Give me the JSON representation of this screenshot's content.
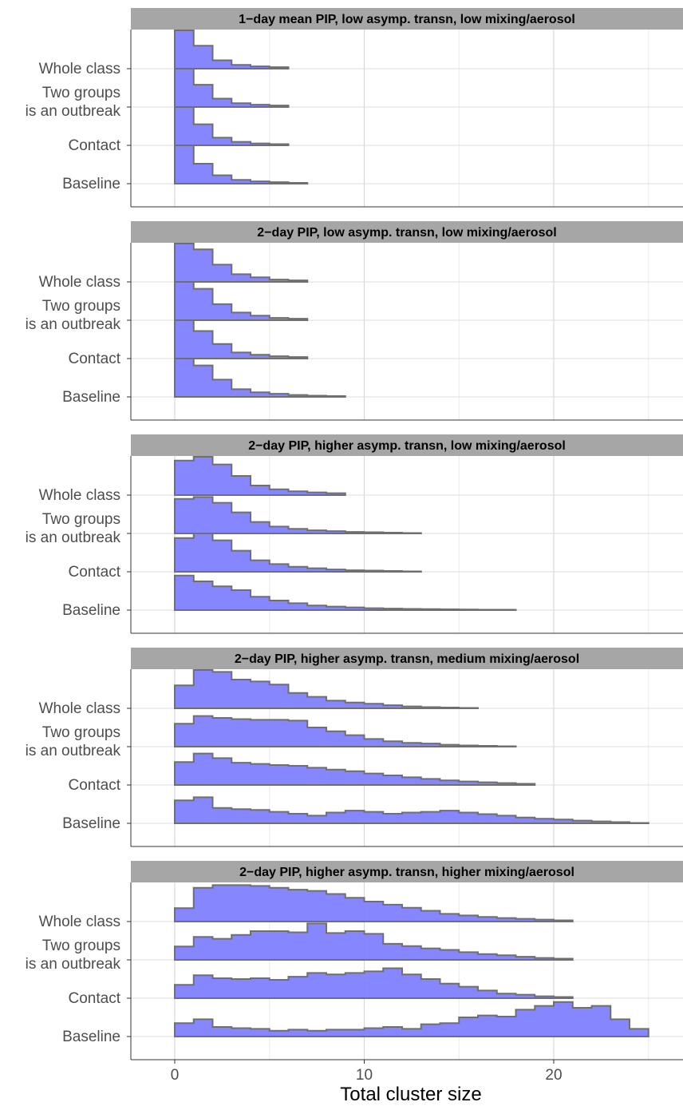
{
  "chart_data": {
    "type": "histogram-ridgeline",
    "xlabel": "Total cluster size",
    "x_ticks": [
      0,
      10,
      20
    ],
    "xlim": [
      -2.3,
      26.8
    ],
    "row_labels": [
      [
        "Whole class"
      ],
      [
        "Two groups",
        "is an outbreak"
      ],
      [
        "Contact"
      ],
      [
        "Baseline"
      ]
    ],
    "colors": {
      "fill": "#8080ff",
      "stroke": "#6f6f6f",
      "strip": "#a6a6a6"
    },
    "panels": [
      {
        "title": "1−day mean PIP,  low asymp. transn, low mixing/aerosol",
        "series": [
          {
            "name": "Whole class",
            "values": [
              1.0,
              0.6,
              0.22,
              0.1,
              0.06,
              0.04
            ]
          },
          {
            "name": "Two groups is an outbreak",
            "values": [
              1.0,
              0.58,
              0.22,
              0.1,
              0.06,
              0.04
            ]
          },
          {
            "name": "Contact",
            "values": [
              1.0,
              0.55,
              0.2,
              0.09,
              0.05,
              0.03
            ]
          },
          {
            "name": "Baseline",
            "values": [
              1.0,
              0.52,
              0.22,
              0.1,
              0.06,
              0.04,
              0.02
            ]
          }
        ]
      },
      {
        "title": "2−day PIP, low asymp. transn, low mixing/aerosol",
        "series": [
          {
            "name": "Whole class",
            "values": [
              1.0,
              0.85,
              0.45,
              0.2,
              0.12,
              0.06,
              0.04
            ]
          },
          {
            "name": "Two groups is an outbreak",
            "values": [
              1.0,
              0.82,
              0.42,
              0.2,
              0.12,
              0.06,
              0.04
            ]
          },
          {
            "name": "Contact",
            "values": [
              1.0,
              0.72,
              0.38,
              0.16,
              0.1,
              0.06,
              0.04
            ]
          },
          {
            "name": "Baseline",
            "values": [
              1.0,
              0.82,
              0.45,
              0.2,
              0.12,
              0.08,
              0.05,
              0.03,
              0.02
            ]
          }
        ]
      },
      {
        "title": "2−day PIP, higher asymp. transn, low mixing/aerosol",
        "series": [
          {
            "name": "Whole class",
            "values": [
              0.9,
              1.0,
              0.8,
              0.5,
              0.25,
              0.15,
              0.1,
              0.07,
              0.05
            ]
          },
          {
            "name": "Two groups is an outbreak",
            "values": [
              0.9,
              0.95,
              0.8,
              0.55,
              0.3,
              0.18,
              0.12,
              0.08,
              0.06,
              0.04,
              0.03,
              0.02,
              0.01
            ]
          },
          {
            "name": "Contact",
            "values": [
              0.88,
              1.0,
              0.82,
              0.55,
              0.3,
              0.2,
              0.13,
              0.09,
              0.06,
              0.04,
              0.03,
              0.02,
              0.01
            ]
          },
          {
            "name": "Baseline",
            "values": [
              0.9,
              0.75,
              0.62,
              0.52,
              0.35,
              0.25,
              0.18,
              0.12,
              0.09,
              0.07,
              0.05,
              0.04,
              0.03,
              0.025,
              0.02,
              0.015,
              0.01,
              0.01
            ]
          }
        ]
      },
      {
        "title": "2−day PIP, higher asymp. transn, medium mixing/aerosol",
        "series": [
          {
            "name": "Whole class",
            "values": [
              0.6,
              1.0,
              0.95,
              0.75,
              0.7,
              0.62,
              0.4,
              0.3,
              0.2,
              0.15,
              0.12,
              0.08,
              0.05,
              0.03,
              0.02,
              0.01
            ]
          },
          {
            "name": "Two groups is an outbreak",
            "values": [
              0.6,
              0.8,
              0.75,
              0.72,
              0.7,
              0.7,
              0.68,
              0.5,
              0.4,
              0.3,
              0.2,
              0.14,
              0.1,
              0.08,
              0.05,
              0.03,
              0.02,
              0.01
            ]
          },
          {
            "name": "Contact",
            "values": [
              0.6,
              0.82,
              0.7,
              0.58,
              0.55,
              0.52,
              0.5,
              0.45,
              0.4,
              0.36,
              0.3,
              0.25,
              0.2,
              0.16,
              0.12,
              0.09,
              0.07,
              0.05,
              0.03
            ]
          },
          {
            "name": "Baseline",
            "values": [
              0.6,
              0.68,
              0.4,
              0.37,
              0.35,
              0.3,
              0.25,
              0.2,
              0.28,
              0.33,
              0.3,
              0.25,
              0.28,
              0.3,
              0.33,
              0.28,
              0.24,
              0.2,
              0.15,
              0.12,
              0.1,
              0.07,
              0.05,
              0.03,
              0.01
            ]
          }
        ]
      },
      {
        "title": "2−day PIP, higher asymp. transn, higher mixing/aerosol",
        "series": [
          {
            "name": "Whole class",
            "values": [
              0.35,
              0.88,
              0.95,
              0.95,
              0.93,
              0.88,
              0.83,
              0.8,
              0.72,
              0.62,
              0.52,
              0.44,
              0.36,
              0.28,
              0.2,
              0.16,
              0.12,
              0.09,
              0.07,
              0.05,
              0.03
            ]
          },
          {
            "name": "Two groups is an outbreak",
            "values": [
              0.35,
              0.6,
              0.55,
              0.65,
              0.75,
              0.75,
              0.72,
              0.95,
              0.7,
              0.75,
              0.68,
              0.42,
              0.36,
              0.3,
              0.26,
              0.2,
              0.15,
              0.12,
              0.08,
              0.05,
              0.03
            ]
          },
          {
            "name": "Contact",
            "values": [
              0.35,
              0.6,
              0.52,
              0.5,
              0.52,
              0.48,
              0.56,
              0.66,
              0.62,
              0.66,
              0.7,
              0.78,
              0.62,
              0.5,
              0.38,
              0.3,
              0.2,
              0.12,
              0.09,
              0.05,
              0.03
            ]
          },
          {
            "name": "Baseline",
            "values": [
              0.35,
              0.45,
              0.25,
              0.22,
              0.2,
              0.15,
              0.18,
              0.15,
              0.18,
              0.18,
              0.22,
              0.25,
              0.2,
              0.32,
              0.35,
              0.5,
              0.55,
              0.52,
              0.7,
              0.8,
              0.9,
              0.75,
              0.8,
              0.45,
              0.2
            ]
          }
        ]
      }
    ]
  }
}
